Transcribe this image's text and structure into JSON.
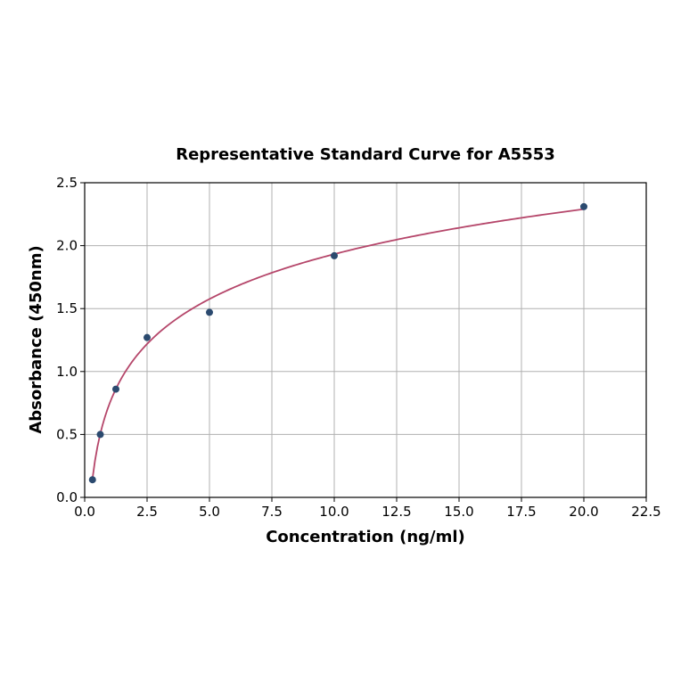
{
  "chart_data": {
    "type": "scatter",
    "title": "Representative Standard Curve for A5553",
    "xlabel": "Concentration (ng/ml)",
    "ylabel": "Absorbance (450nm)",
    "xlim": [
      0,
      22.5
    ],
    "ylim": [
      0,
      2.5
    ],
    "xticks": [
      "0.0",
      "2.5",
      "5.0",
      "7.5",
      "10.0",
      "12.5",
      "15.0",
      "17.5",
      "20.0",
      "22.5"
    ],
    "yticks": [
      "0.0",
      "0.5",
      "1.0",
      "1.5",
      "2.0",
      "2.5"
    ],
    "grid": true,
    "series": [
      {
        "x": [
          0.3125,
          0.625,
          1.25,
          2.5,
          5,
          10,
          20
        ],
        "y": [
          0.14,
          0.5,
          0.86,
          1.27,
          1.47,
          1.92,
          2.31
        ],
        "color": "#2b4a6f"
      }
    ],
    "fit": {
      "type": "logarithmic",
      "a": 0.747,
      "b": 0.515,
      "x_range": [
        0.3125,
        20
      ],
      "color": "#b5466a"
    }
  }
}
